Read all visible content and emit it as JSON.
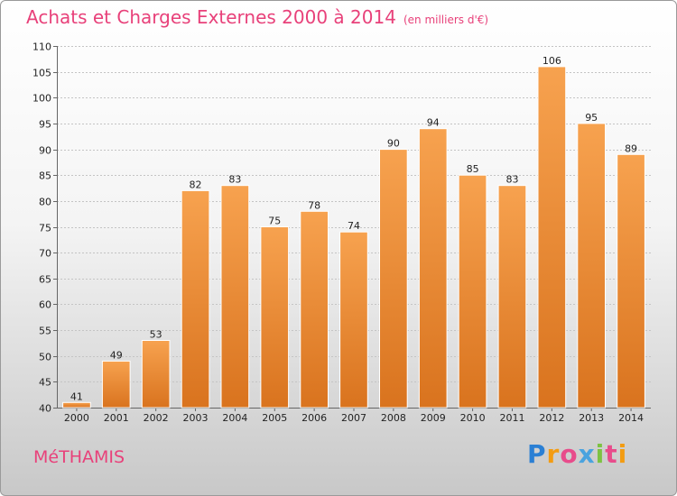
{
  "header": {
    "title": "Achats et Charges Externes 2000 à 2014",
    "unit": "(en milliers d'€)"
  },
  "footer": {
    "commune": "MéTHAMIS",
    "logo": [
      "P",
      "r",
      "o",
      "x",
      "i",
      "t",
      "i"
    ],
    "logo_colors": [
      "#2a7fd4",
      "#f39c12",
      "#e84c8b",
      "#4aa3df",
      "#7dc242",
      "#e84c8b",
      "#f39c12"
    ]
  },
  "chart_data": {
    "type": "bar",
    "title": "Achats et Charges Externes 2000 à 2014",
    "subtitle": "(en milliers d'€)",
    "xlabel": "",
    "ylabel": "",
    "categories": [
      "2000",
      "2001",
      "2002",
      "2003",
      "2004",
      "2005",
      "2006",
      "2007",
      "2008",
      "2009",
      "2010",
      "2011",
      "2012",
      "2013",
      "2014"
    ],
    "values": [
      41,
      49,
      53,
      82,
      83,
      75,
      78,
      74,
      90,
      94,
      85,
      83,
      106,
      95,
      89
    ],
    "ylim": [
      40,
      110
    ],
    "yticks": [
      40,
      45,
      50,
      55,
      60,
      65,
      70,
      75,
      80,
      85,
      90,
      95,
      100,
      105,
      110
    ],
    "grid": true,
    "legend": "none",
    "bar_color_top": "#f7a24f",
    "bar_color_bottom": "#d9731e"
  }
}
